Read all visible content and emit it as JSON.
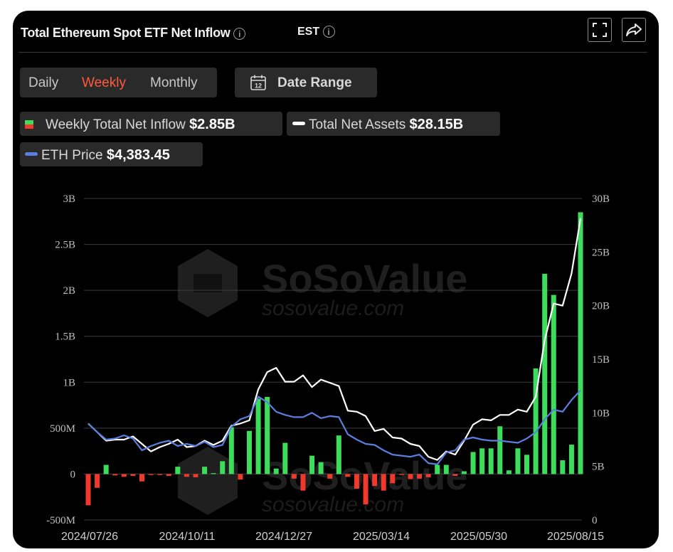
{
  "header": {
    "title": "Total Ethereum Spot ETF Net Inflow",
    "timezone": "EST",
    "info_glyph": "i"
  },
  "tabs": [
    {
      "label": "Daily",
      "active": false
    },
    {
      "label": "Weekly",
      "active": true
    },
    {
      "label": "Monthly",
      "active": false
    }
  ],
  "date_range": {
    "label": "Date Range",
    "icon_text": "12"
  },
  "legend": [
    {
      "label": "Weekly Total Net Inflow",
      "value": "$2.85B"
    },
    {
      "label": "Total Net Assets",
      "value": "$28.15B"
    },
    {
      "label": "ETH Price",
      "value": "$4,383.45"
    }
  ],
  "watermark": {
    "brand": "SoSoValue",
    "site": "sosovalue.com"
  },
  "colors": {
    "positive_bar": "#3ddc5a",
    "negative_bar": "#f0392b",
    "net_assets_line": "#ffffff",
    "eth_price_line": "#5b7fe0",
    "active_tab": "#ff5a3c",
    "background": "#000000"
  },
  "chart_data": {
    "type": "bar",
    "title": "Total Ethereum Spot ETF Net Inflow",
    "left_axis": {
      "ticks": [
        "3B",
        "2.5B",
        "2B",
        "1.5B",
        "1B",
        "500M",
        "0",
        "-500M"
      ],
      "range": [
        -500000000,
        3000000000
      ]
    },
    "right_axis": {
      "ticks": [
        "30B",
        "25B",
        "20B",
        "15B",
        "10B",
        "5B",
        "0"
      ],
      "range": [
        0,
        30000000000
      ]
    },
    "x_ticks": [
      "2024/07/26",
      "2024/10/11",
      "2024/12/27",
      "2025/03/14",
      "2025/05/30",
      "2025/08/15"
    ],
    "grid": true,
    "series": [
      {
        "name": "Weekly Total Net Inflow",
        "type": "bar",
        "axis": "left",
        "values": [
          -340,
          -150,
          100,
          -15,
          -30,
          -20,
          -80,
          -10,
          -10,
          -20,
          80,
          -30,
          -35,
          80,
          10,
          140,
          510,
          -60,
          470,
          820,
          840,
          60,
          340,
          -50,
          -180,
          200,
          130,
          -50,
          420,
          -30,
          -160,
          -330,
          -130,
          -180,
          -100,
          -10,
          -55,
          -50,
          -35,
          100,
          100,
          -20,
          30,
          240,
          280,
          280,
          520,
          40,
          280,
          210,
          1150,
          2180,
          1950,
          150,
          320,
          2850
        ]
      },
      {
        "name": "Total Net Assets",
        "type": "line",
        "axis": "right",
        "values": [
          9.0,
          8.2,
          7.4,
          7.5,
          7.5,
          7.8,
          7.1,
          6.4,
          6.8,
          7.1,
          7.5,
          6.8,
          6.9,
          7.4,
          7.0,
          7.4,
          8.8,
          9.0,
          9.3,
          12.2,
          13.8,
          14.2,
          12.9,
          12.9,
          13.5,
          12.4,
          13.1,
          12.8,
          12.5,
          10.2,
          10.1,
          9.7,
          8.3,
          8.5,
          7.7,
          7.6,
          7.1,
          6.9,
          5.9,
          5.6,
          6.4,
          6.1,
          7.4,
          8.9,
          9.4,
          9.3,
          9.8,
          9.8,
          10.3,
          10.1,
          11.5,
          16.8,
          20.2,
          20.0,
          23.0,
          28.15
        ]
      },
      {
        "name": "ETH Price",
        "type": "line",
        "axis": "right",
        "values": [
          9.0,
          8.2,
          7.5,
          7.6,
          7.9,
          7.6,
          6.5,
          6.9,
          7.2,
          7.4,
          6.9,
          7.1,
          6.9,
          7.3,
          6.8,
          7.0,
          8.7,
          9.4,
          9.7,
          11.5,
          11.0,
          10.1,
          9.8,
          9.6,
          9.6,
          10.0,
          9.5,
          9.7,
          9.6,
          8.0,
          7.5,
          7.1,
          7.0,
          6.5,
          6.1,
          6.0,
          5.9,
          6.1,
          5.3,
          5.2,
          6.3,
          6.5,
          7.5,
          7.7,
          7.5,
          7.4,
          7.4,
          7.3,
          7.2,
          7.6,
          8.2,
          9.4,
          10.3,
          10.1,
          11.2,
          12.1
        ]
      }
    ]
  }
}
